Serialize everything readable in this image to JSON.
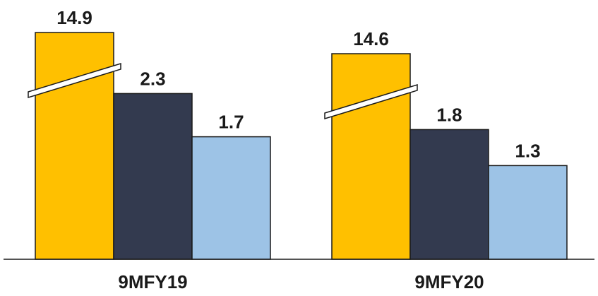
{
  "chart_data": {
    "type": "bar",
    "categories": [
      "9MFY19",
      "9MFY20"
    ],
    "series": [
      {
        "values": [
          14.9,
          14.6
        ],
        "color": "#FFC000",
        "broken": true
      },
      {
        "values": [
          2.3,
          1.8
        ],
        "color": "#333A4F",
        "broken": false
      },
      {
        "values": [
          1.7,
          1.3
        ],
        "color": "#9DC3E6",
        "broken": false
      }
    ],
    "data_labels": [
      [
        "14.9",
        "2.3",
        "1.7"
      ],
      [
        "14.6",
        "1.8",
        "1.3"
      ]
    ],
    "axis_break": true,
    "grid": false,
    "legend": "none"
  }
}
